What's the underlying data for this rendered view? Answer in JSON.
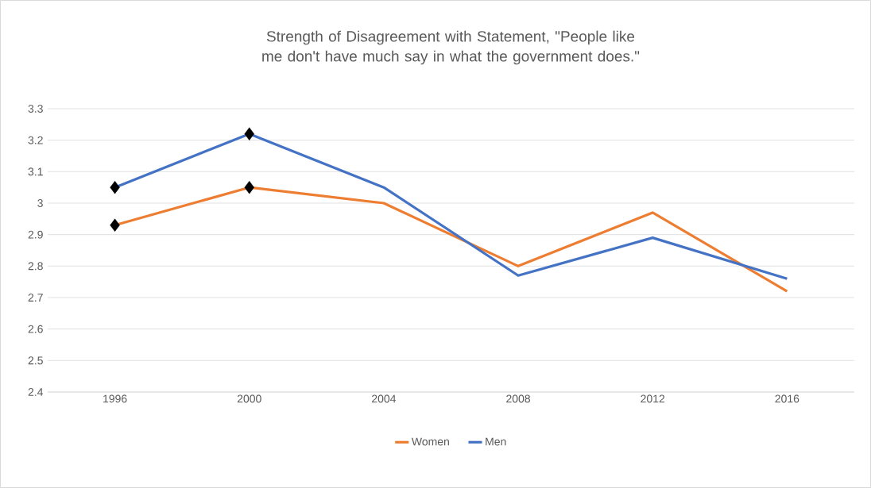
{
  "chart_data": {
    "type": "line",
    "title": "Strength of Disagreement with Statement, \"People like me don't have much say in what the government does.\"",
    "categories": [
      "1996",
      "2000",
      "2004",
      "2008",
      "2012",
      "2016"
    ],
    "series": [
      {
        "name": "Women",
        "color": "#ed7d31",
        "values": [
          2.93,
          3.05,
          3.0,
          2.8,
          2.97,
          2.72
        ],
        "marker": "none"
      },
      {
        "name": "Men",
        "color": "#4472c4",
        "values": [
          3.05,
          3.22,
          3.05,
          2.77,
          2.89,
          2.76
        ],
        "marker": "none"
      },
      {
        "type": "scatter",
        "color": "#000000",
        "values": [
          2.93,
          3.05,
          null,
          null,
          null,
          null
        ],
        "marker": "diamond"
      },
      {
        "type": "scatter",
        "color": "#000000",
        "values": [
          3.05,
          3.22,
          null,
          null,
          null,
          null
        ],
        "marker": "diamond"
      }
    ],
    "ylim": [
      2.4,
      3.3
    ],
    "yticks": [
      2.4,
      2.5,
      2.6,
      2.7,
      2.8,
      2.9,
      3,
      3.1,
      3.2,
      3.3
    ],
    "grid": "y",
    "legend": "bottom",
    "line_style": "solid"
  }
}
